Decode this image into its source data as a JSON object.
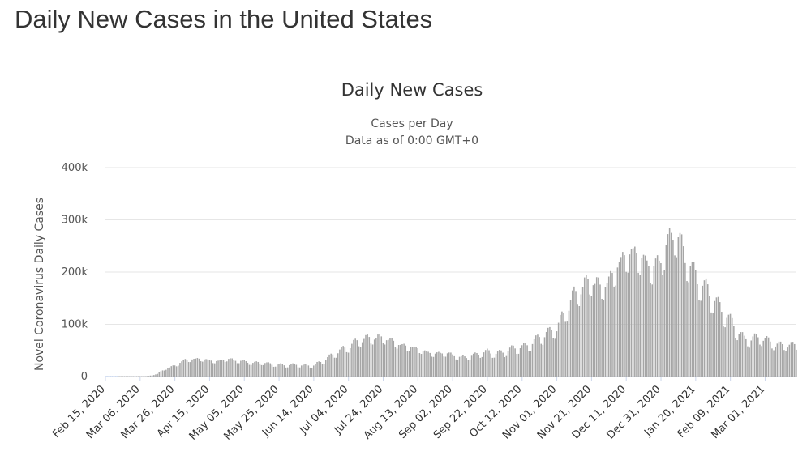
{
  "page": {
    "title": "Daily New Cases in the United States"
  },
  "chart_data": {
    "type": "bar",
    "title": "Daily New Cases",
    "subtitle": [
      "Cases per Day",
      "Data as of 0:00 GMT+0"
    ],
    "ylabel": "Novel Coronavirus Daily Cases",
    "xlabel": "",
    "ylim": [
      0,
      400000
    ],
    "yticks": [
      0,
      100000,
      200000,
      300000,
      400000
    ],
    "ytick_labels": [
      "0",
      "100k",
      "200k",
      "300k",
      "400k"
    ],
    "x_start": "2020-02-15",
    "x_end": "2021-03-19",
    "xtick_dates": [
      "2020-02-15",
      "2020-03-06",
      "2020-03-26",
      "2020-04-15",
      "2020-05-05",
      "2020-05-25",
      "2020-06-14",
      "2020-07-04",
      "2020-07-24",
      "2020-08-13",
      "2020-09-02",
      "2020-09-22",
      "2020-10-12",
      "2020-11-01",
      "2020-11-21",
      "2020-12-11",
      "2020-12-31",
      "2021-01-20",
      "2021-02-09",
      "2021-03-01"
    ],
    "xtick_labels": [
      "Feb 15, 2020",
      "Mar 06, 2020",
      "Mar 26, 2020",
      "Apr 15, 2020",
      "May 05, 2020",
      "May 25, 2020",
      "Jun 14, 2020",
      "Jul 04, 2020",
      "Jul 24, 2020",
      "Aug 13, 2020",
      "Sep 02, 2020",
      "Sep 22, 2020",
      "Oct 12, 2020",
      "Nov 01, 2020",
      "Nov 21, 2020",
      "Dec 11, 2020",
      "Dec 31, 2020",
      "Jan 20, 2021",
      "Feb 09, 2021",
      "Mar 01, 2021"
    ],
    "grid": true,
    "legend": "none",
    "bar_color": "#a6a6a6",
    "series": [
      {
        "dates": [
          "2020-02-15",
          "2020-03-01",
          "2020-03-06",
          "2020-03-11",
          "2020-03-16",
          "2020-03-21",
          "2020-03-26",
          "2020-03-31",
          "2020-04-05",
          "2020-04-10",
          "2020-04-15",
          "2020-04-20",
          "2020-04-25",
          "2020-04-30",
          "2020-05-05",
          "2020-05-10",
          "2020-05-15",
          "2020-05-20",
          "2020-05-25",
          "2020-05-30",
          "2020-06-04",
          "2020-06-09",
          "2020-06-14",
          "2020-06-19",
          "2020-06-24",
          "2020-06-29",
          "2020-07-04",
          "2020-07-09",
          "2020-07-14",
          "2020-07-19",
          "2020-07-24",
          "2020-07-29",
          "2020-08-03",
          "2020-08-08",
          "2020-08-13",
          "2020-08-18",
          "2020-08-23",
          "2020-08-28",
          "2020-09-02",
          "2020-09-07",
          "2020-09-12",
          "2020-09-17",
          "2020-09-22",
          "2020-09-27",
          "2020-10-02",
          "2020-10-07",
          "2020-10-12",
          "2020-10-17",
          "2020-10-22",
          "2020-10-27",
          "2020-11-01",
          "2020-11-06",
          "2020-11-11",
          "2020-11-16",
          "2020-11-21",
          "2020-11-26",
          "2020-12-01",
          "2020-12-06",
          "2020-12-11",
          "2020-12-16",
          "2020-12-21",
          "2020-12-26",
          "2020-12-31",
          "2021-01-03",
          "2021-01-08",
          "2021-01-13",
          "2021-01-18",
          "2021-01-23",
          "2021-01-28",
          "2021-02-02",
          "2021-02-07",
          "2021-02-12",
          "2021-02-17",
          "2021-02-22",
          "2021-02-27",
          "2021-03-04",
          "2021-03-09",
          "2021-03-14",
          "2021-03-19"
        ],
        "values": [
          0,
          100,
          300,
          1000,
          5000,
          15000,
          20000,
          30000,
          32000,
          33000,
          30000,
          28000,
          33000,
          30000,
          28000,
          25000,
          26000,
          23000,
          22000,
          21000,
          22000,
          20000,
          21000,
          28000,
          38000,
          48000,
          55000,
          65000,
          70000,
          72000,
          72000,
          66000,
          58000,
          55000,
          52000,
          45000,
          42000,
          44000,
          40000,
          35000,
          37000,
          42000,
          46000,
          42000,
          46000,
          52000,
          54000,
          60000,
          72000,
          80000,
          90000,
          120000,
          150000,
          165000,
          180000,
          165000,
          175000,
          205000,
          225000,
          230000,
          215000,
          200000,
          215000,
          240000,
          270000,
          230000,
          195000,
          170000,
          155000,
          130000,
          110000,
          90000,
          68000,
          70000,
          72000,
          63000,
          58000,
          58000,
          58000
        ]
      }
    ]
  }
}
